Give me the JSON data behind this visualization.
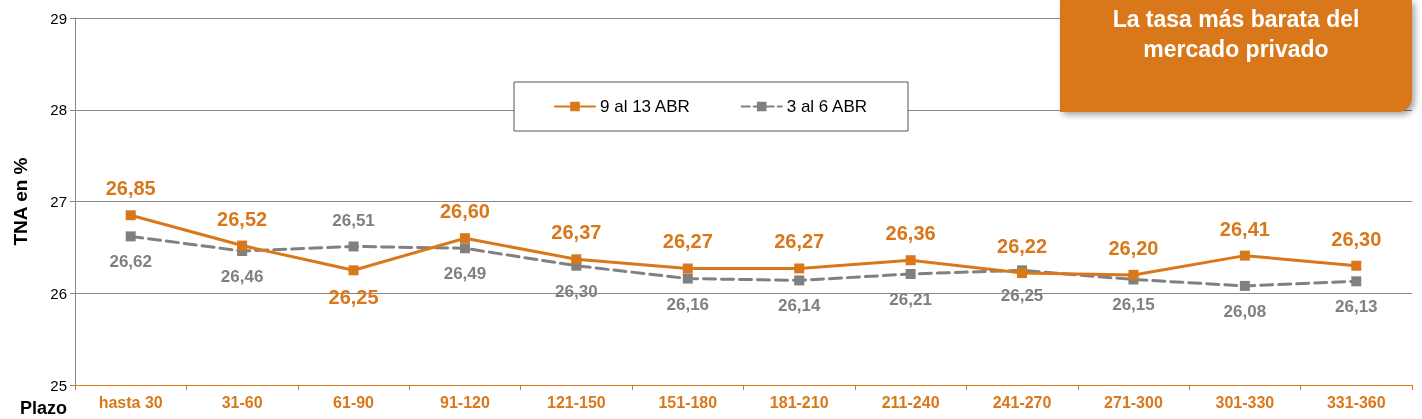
{
  "chart_data": {
    "type": "line",
    "ylabel": "TNA en %",
    "xlabel": "Plazo",
    "categories": [
      "hasta 30",
      "31-60",
      "61-90",
      "91-120",
      "121-150",
      "151-180",
      "181-210",
      "211-240",
      "241-270",
      "271-300",
      "301-330",
      "331-360"
    ],
    "series": [
      {
        "name": "9 al 13 ABR",
        "color": "#d9781a",
        "line_style": "solid",
        "values": [
          26.85,
          26.52,
          26.25,
          26.6,
          26.37,
          26.27,
          26.27,
          26.36,
          26.22,
          26.2,
          26.41,
          26.3
        ],
        "value_labels": [
          "26,85",
          "26,52",
          "26,25",
          "26,60",
          "26,37",
          "26,27",
          "26,27",
          "26,36",
          "26,22",
          "26,20",
          "26,41",
          "26,30"
        ]
      },
      {
        "name": "3 al 6 ABR",
        "color": "#808080",
        "line_style": "dashed",
        "values": [
          26.62,
          26.46,
          26.51,
          26.49,
          26.3,
          26.16,
          26.14,
          26.21,
          26.25,
          26.15,
          26.08,
          26.13
        ],
        "value_labels": [
          "26,62",
          "26,46",
          "26,51",
          "26,49",
          "26,30",
          "26,16",
          "26,14",
          "26,21",
          "26,25",
          "26,15",
          "26,08",
          "26,13"
        ]
      }
    ],
    "ylim": [
      25,
      29
    ],
    "yticks": [
      25,
      26,
      27,
      28,
      29
    ],
    "grid": "y",
    "legend": "top",
    "marker": "square",
    "annotations": [
      "La tasa más barata del mercado privado"
    ]
  }
}
